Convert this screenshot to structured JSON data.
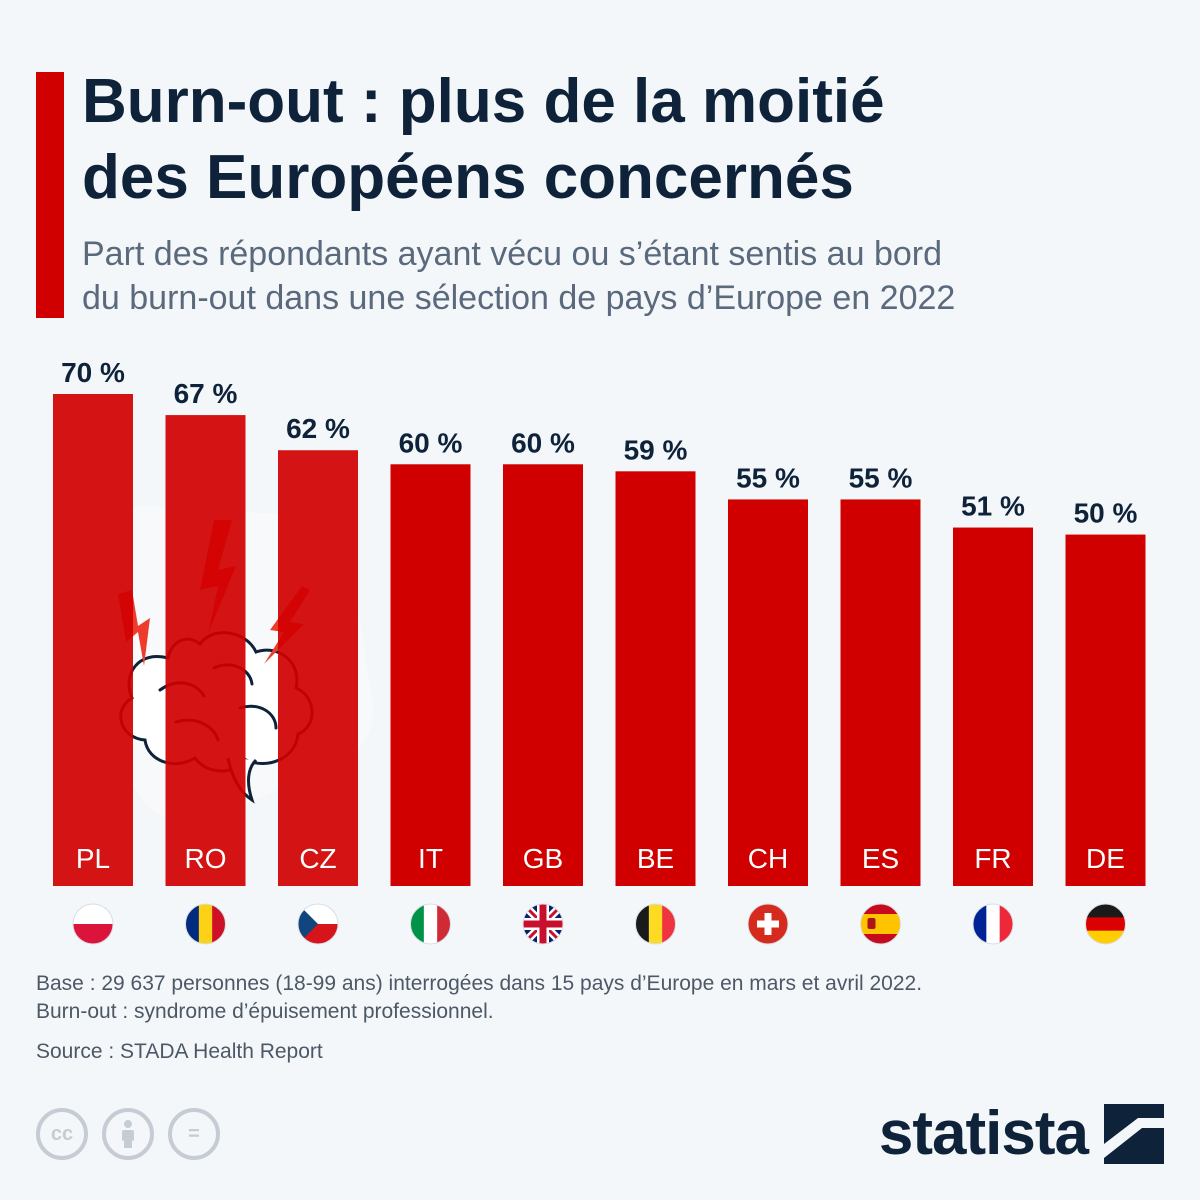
{
  "header": {
    "title_line1": "Burn-out : plus de la moitié",
    "title_line2": "des Européens concernés",
    "subtitle_line1": "Part des répondants ayant vécu ou s’étant sentis au bord",
    "subtitle_line2": "du burn-out dans une sélection de pays d’Europe en 2022"
  },
  "chart_data": {
    "type": "bar",
    "categories": [
      "PL",
      "RO",
      "CZ",
      "IT",
      "GB",
      "BE",
      "CH",
      "ES",
      "FR",
      "DE"
    ],
    "values": [
      70,
      67,
      62,
      60,
      60,
      59,
      55,
      55,
      51,
      50
    ],
    "value_labels": [
      "70 %",
      "67 %",
      "62 %",
      "60 %",
      "60 %",
      "59 %",
      "55 %",
      "55 %",
      "51 %",
      "50 %"
    ],
    "bar_color": "#d00000",
    "ylim": [
      0,
      70
    ],
    "grid": false,
    "legend": "none"
  },
  "flags": [
    "poland-flag-icon",
    "romania-flag-icon",
    "czechia-flag-icon",
    "italy-flag-icon",
    "uk-flag-icon",
    "belgium-flag-icon",
    "switzerland-flag-icon",
    "spain-flag-icon",
    "france-flag-icon",
    "germany-flag-icon"
  ],
  "illustration": "brain-burnout-icon",
  "footer": {
    "note_line1": "Base : 29 637 personnes (18-99 ans) interrogées dans 15 pays d’Europe en mars et avril 2022.",
    "note_line2": "Burn-out : syndrome d’épuisement professionnel.",
    "source": "Source : STADA Health Report",
    "license_icons": [
      "cc-icon",
      "attribution-icon",
      "no-derivatives-icon"
    ],
    "license_cc": "cc",
    "license_nd": "=",
    "logo": "statista"
  },
  "colors": {
    "accent": "#d00000",
    "title": "#0e2239",
    "subtitle": "#5a6a7c",
    "background": "#f4f7fa"
  }
}
